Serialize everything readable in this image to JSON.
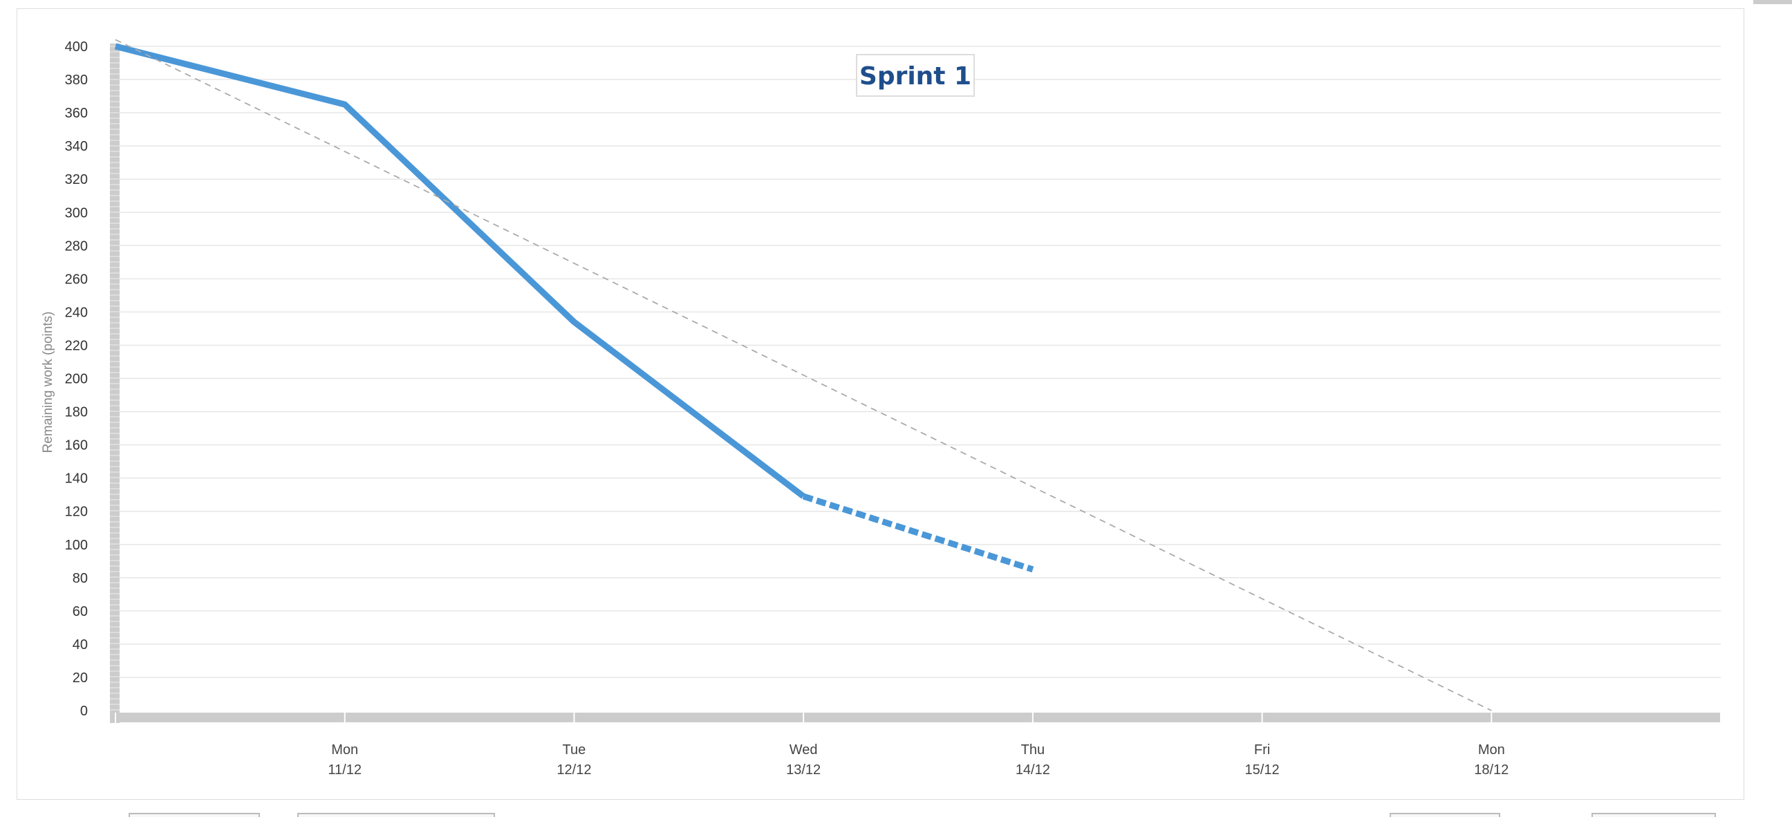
{
  "chart_data": {
    "type": "line",
    "title": "Sprint 1",
    "ylabel": "Remaining work (points)",
    "ylim": [
      0,
      400
    ],
    "y_ticks": [
      0,
      20,
      40,
      60,
      80,
      100,
      120,
      140,
      160,
      180,
      200,
      220,
      240,
      260,
      280,
      300,
      320,
      340,
      360,
      380,
      400
    ],
    "categories": [
      {
        "day": "",
        "date": ""
      },
      {
        "day": "Mon",
        "date": "11/12"
      },
      {
        "day": "Tue",
        "date": "12/12"
      },
      {
        "day": "Wed",
        "date": "13/12"
      },
      {
        "day": "Thu",
        "date": "14/12"
      },
      {
        "day": "Fri",
        "date": "15/12"
      },
      {
        "day": "Mon",
        "date": "18/12"
      },
      {
        "day": "",
        "date": ""
      }
    ],
    "series": [
      {
        "style": "solid",
        "color": "#4a97d8",
        "points": [
          [
            0,
            400
          ],
          [
            1,
            365
          ],
          [
            2,
            234
          ],
          [
            3,
            129
          ]
        ]
      },
      {
        "style": "dashed-thick",
        "color": "#4a97d8",
        "points": [
          [
            3,
            129
          ],
          [
            4,
            85
          ]
        ]
      },
      {
        "style": "dashed-thin",
        "color": "#aaaaaa",
        "points": [
          [
            0,
            404
          ],
          [
            6,
            0
          ]
        ]
      }
    ],
    "grid": true,
    "colors": {
      "grid": "#e6e6e6",
      "axis": "#cccccc",
      "title": "#1f4e8c"
    }
  }
}
